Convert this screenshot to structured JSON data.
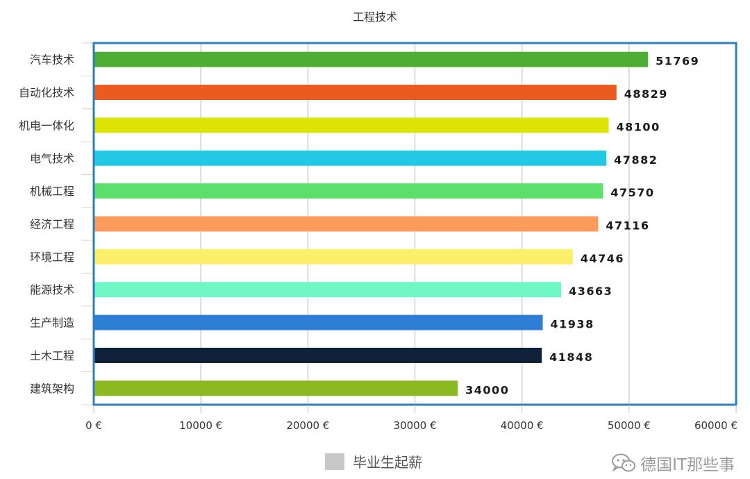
{
  "chart_data": {
    "type": "bar",
    "orientation": "horizontal",
    "title": "工程技术",
    "categories": [
      "汽车技术",
      "自动化技术",
      "机电一体化",
      "电气技术",
      "机械工程",
      "经济工程",
      "环境工程",
      "能源技术",
      "生产制造",
      "土木工程",
      "建筑架构"
    ],
    "values": [
      51769,
      48829,
      48100,
      47882,
      47570,
      47116,
      44746,
      43663,
      41938,
      41848,
      34000
    ],
    "data_labels": [
      "51769",
      "48829",
      "48100",
      "47882",
      "47570",
      "47116",
      "44746",
      "43663",
      "41938",
      "41848",
      "34000"
    ],
    "colors": [
      "#4cae32",
      "#eb5a1e",
      "#dde303",
      "#22c8e4",
      "#5de06b",
      "#fc9b5c",
      "#fcf06b",
      "#6ff7c6",
      "#2d7fd6",
      "#0e2138",
      "#8ab921"
    ],
    "xlim": [
      0,
      60000
    ],
    "xticks": [
      0,
      10000,
      20000,
      30000,
      40000,
      50000,
      60000
    ],
    "xtick_labels": [
      "0 €",
      "10000 €",
      "20000 €",
      "30000 €",
      "40000 €",
      "50000 €",
      "60000 €"
    ],
    "xlabel": "",
    "ylabel": "",
    "grid": true,
    "legend": {
      "label": "毕业生起薪",
      "color": "#c8c8c8",
      "position": "bottom-center"
    }
  },
  "watermark": {
    "text": "德国IT那些事",
    "icon": "wechat-icon"
  }
}
